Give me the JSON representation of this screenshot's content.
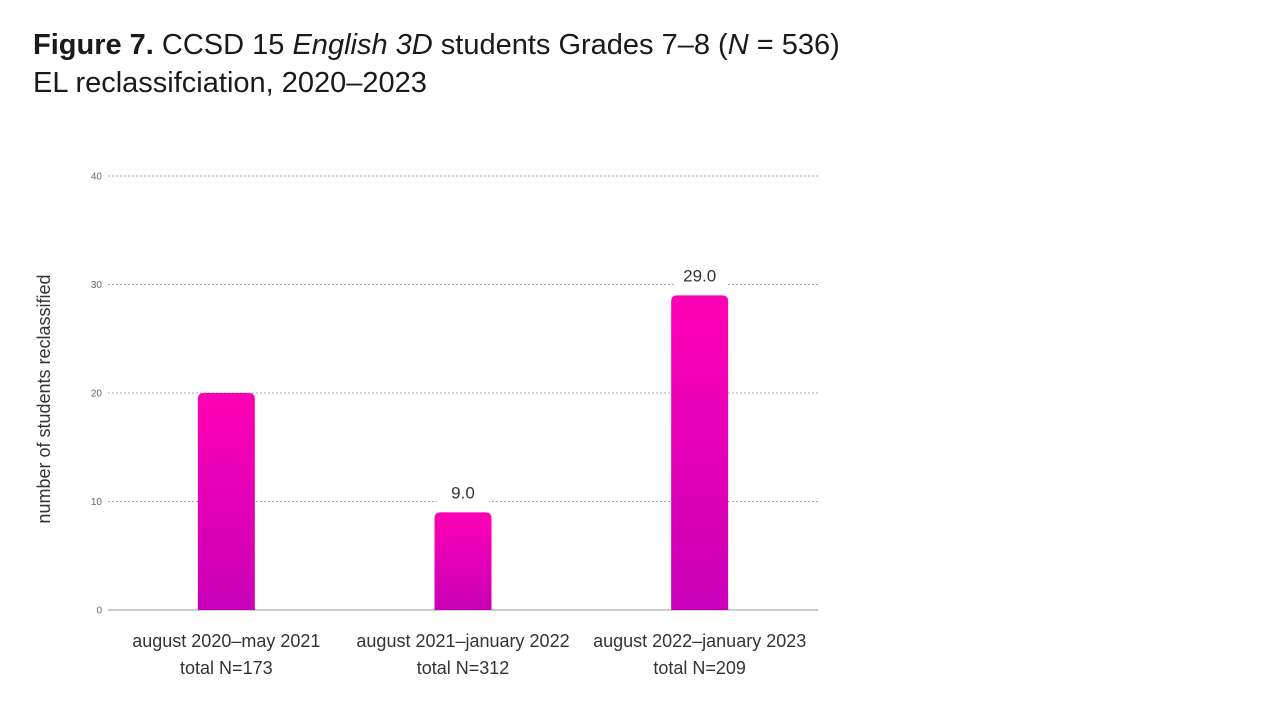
{
  "figure": {
    "label": "Figure 7.",
    "title_pre": "CCSD 15 ",
    "title_italic": "English 3D",
    "title_mid": " students Grades 7–8 (",
    "title_n": "N",
    "title_post": " = 536)",
    "subtitle": "EL reclassifciation, 2020–2023"
  },
  "chart_data": {
    "type": "bar",
    "categories": [
      [
        "august 2020–may 2021",
        "total N=173"
      ],
      [
        "august 2021–january 2022",
        "total N=312"
      ],
      [
        "august 2022–january 2023",
        "total N=209"
      ]
    ],
    "values": [
      20,
      9,
      29
    ],
    "data_labels": [
      "",
      "9.0",
      "29.0"
    ],
    "ylabel": "number of students reclassified",
    "ylim": [
      0,
      40
    ],
    "yticks": [
      0,
      10,
      20,
      30,
      40
    ],
    "grid": true,
    "bar_color_top": "#ff00b4",
    "bar_color_bottom": "#c800b8"
  }
}
